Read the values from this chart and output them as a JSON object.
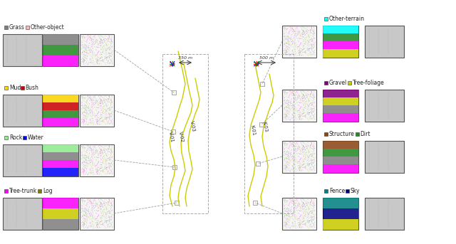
{
  "title": "",
  "background_color": "#ffffff",
  "left_panels": [
    {
      "row": 0,
      "label_text": "Tree-trunk",
      "label_color": "#ff00ff",
      "label2_text": "Log",
      "label2_color": "#808000"
    },
    {
      "row": 1,
      "label_text": "Rock",
      "label_color": "#90ee90",
      "label2_text": "Water",
      "label2_color": "#0000ff"
    },
    {
      "row": 2,
      "label_text": "Mud",
      "label_color": "#ffd700",
      "label2_text": "Bush",
      "label2_color": "#cc0000"
    },
    {
      "row": 3,
      "label_text": "Grass",
      "label_color": "#808080",
      "label2_text": "Other-object",
      "label2_color": "#ffb6c1"
    }
  ],
  "right_panels": [
    {
      "row": 0,
      "label_text": "Fence",
      "label_color": "#008080",
      "label2_text": "Sky",
      "label2_color": "#000080"
    },
    {
      "row": 1,
      "label_text": "Structure",
      "label_color": "#8b4513",
      "label2_text": "Dirt",
      "label2_color": "#228b22"
    },
    {
      "row": 2,
      "label_text": "Gravel",
      "label_color": "#800080",
      "label2_text": "Tree-foliage",
      "label2_color": "#cccc00"
    },
    {
      "row": 3,
      "label_text": "Other-terrain",
      "label_color": "#00ffff",
      "label2_text": "",
      "label2_color": "#ffffff"
    }
  ],
  "map_labels_left": [
    "V-01",
    "V-02",
    "V-03"
  ],
  "map_labels_right": [
    "K-01",
    "K-03"
  ],
  "scale_left": "350 m",
  "scale_right": "500 m",
  "map_color": "#cccc00",
  "map_bg": "#f8f8f8"
}
